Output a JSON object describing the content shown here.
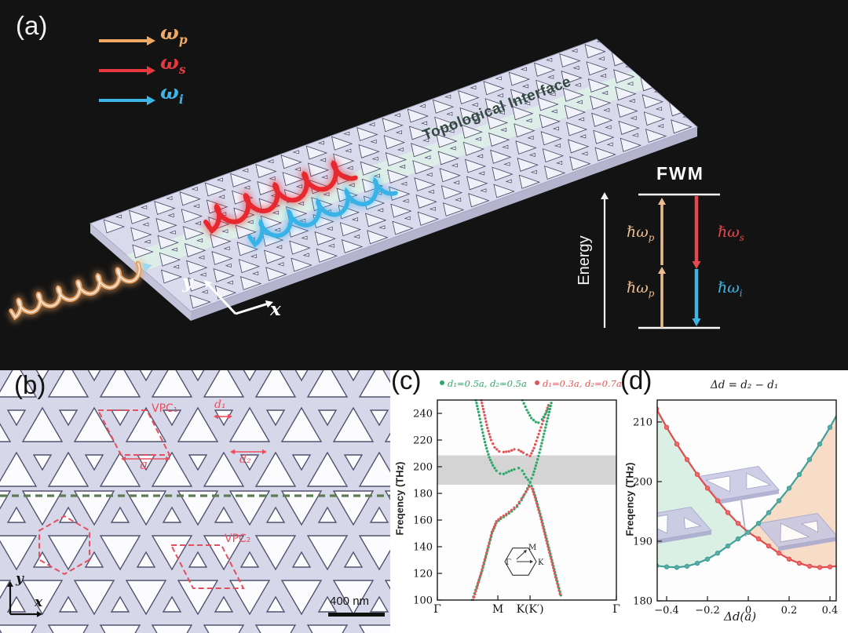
{
  "panel_a": {
    "label": "(a)",
    "legend": [
      {
        "name": "pump",
        "base": "ω",
        "sub": "p",
        "color": "#f0a865"
      },
      {
        "name": "signal",
        "base": "ω",
        "sub": "s",
        "color": "#e6383e"
      },
      {
        "name": "idler",
        "base": "ω",
        "sub": "i",
        "color": "#3fb5e5"
      }
    ],
    "interface_label": "Topological Interface",
    "axis_x": "x",
    "axis_y": "y",
    "fwm": {
      "title": "FWM",
      "energy_label": "Energy",
      "arrows": [
        {
          "name": "pump-upper",
          "base": "ℏω",
          "sub": "p",
          "color": "#ecbd92",
          "direction": "up"
        },
        {
          "name": "pump-lower",
          "base": "ℏω",
          "sub": "p",
          "color": "#ecbd92",
          "direction": "up"
        },
        {
          "name": "signal",
          "base": "ℏω",
          "sub": "s",
          "color": "#e6484e",
          "direction": "down"
        },
        {
          "name": "idler",
          "base": "ℏω",
          "sub": "i",
          "color": "#3fb5e5",
          "direction": "down"
        }
      ]
    },
    "colors": {
      "background": "#131313",
      "slab": "#dadaed",
      "holes": "#f1f1fa",
      "hole_outline": "#41415e",
      "interface_stripe": "#dcf3e6",
      "pump_wave": "#eba15f",
      "signal_wave": "#e8282f",
      "idler_wave": "#38b3e8"
    }
  },
  "panel_b": {
    "label": "(b)",
    "vpc1": "VPC₁",
    "vpc2": "VPC₂",
    "a_label": "a",
    "d1_label": "d₁",
    "d2_label": "d₂",
    "axis_x": "x",
    "axis_y": "y",
    "scalebar": "400 nm",
    "colors": {
      "background": "#d7d7ea",
      "hole": "#fcfcff",
      "outline": "#52526e",
      "annotation": "#e84f5e",
      "interface_line": "#5e7b54"
    }
  },
  "panel_c": {
    "label": "(c)"
  },
  "panel_d": {
    "label": "(d)"
  },
  "chart_data": [
    {
      "id": "band-structure",
      "type": "scatter",
      "ylabel": "Freqency (THz)",
      "ylim": [
        100,
        250
      ],
      "yticks": [
        100,
        120,
        140,
        160,
        180,
        200,
        220,
        240
      ],
      "xticks": [
        {
          "label": "Γ",
          "pos": 0
        },
        {
          "label": "M",
          "pos": 0.338
        },
        {
          "label": "K(K′)",
          "pos": 0.518
        },
        {
          "label": "Γ",
          "pos": 1
        }
      ],
      "bandgap_shade_THz": [
        186.5,
        208.5
      ],
      "legend": [
        {
          "label": "d₁=0.5a, d₂=0.5a",
          "color": "#2ea76a"
        },
        {
          "label": "d₁=0.3a, d₂=0.7a",
          "color": "#e05558"
        }
      ],
      "series": [
        {
          "name": "green-lower-band",
          "color": "#2ea76a",
          "points": [
            [
              0.195,
              100
            ],
            [
              0.22,
              110
            ],
            [
              0.25,
              122
            ],
            [
              0.28,
              137
            ],
            [
              0.305,
              150
            ],
            [
              0.33,
              158
            ],
            [
              0.355,
              161
            ],
            [
              0.385,
              163.5
            ],
            [
              0.415,
              166.5
            ],
            [
              0.445,
              170
            ],
            [
              0.47,
              175
            ],
            [
              0.495,
              181.5
            ],
            [
              0.518,
              188
            ],
            [
              0.535,
              183
            ],
            [
              0.555,
              174
            ],
            [
              0.58,
              162
            ],
            [
              0.61,
              146
            ],
            [
              0.64,
              130
            ],
            [
              0.67,
              114
            ],
            [
              0.695,
              101
            ]
          ]
        },
        {
          "name": "red-lower-band",
          "color": "#e05558",
          "points": [
            [
              0.2,
              100
            ],
            [
              0.225,
              111
            ],
            [
              0.25,
              123
            ],
            [
              0.28,
              138
            ],
            [
              0.305,
              151
            ],
            [
              0.33,
              159
            ],
            [
              0.355,
              162
            ],
            [
              0.385,
              164.5
            ],
            [
              0.415,
              167.5
            ],
            [
              0.445,
              171
            ],
            [
              0.47,
              176
            ],
            [
              0.495,
              181
            ],
            [
              0.513,
              185
            ],
            [
              0.53,
              183.5
            ],
            [
              0.55,
              175
            ],
            [
              0.575,
              163
            ],
            [
              0.605,
              147
            ],
            [
              0.635,
              131
            ],
            [
              0.665,
              115
            ],
            [
              0.69,
              102
            ]
          ]
        },
        {
          "name": "green-upper-band",
          "color": "#2ea76a",
          "points": [
            [
              0.215,
              250
            ],
            [
              0.23,
              241
            ],
            [
              0.25,
              228
            ],
            [
              0.27,
              216
            ],
            [
              0.29,
              207
            ],
            [
              0.31,
              201
            ],
            [
              0.33,
              197
            ],
            [
              0.35,
              194.8
            ],
            [
              0.37,
              194.6
            ],
            [
              0.4,
              196.5
            ],
            [
              0.43,
              198
            ],
            [
              0.455,
              199
            ],
            [
              0.475,
              197
            ],
            [
              0.495,
              192
            ],
            [
              0.518,
              188.5
            ],
            [
              0.535,
              194
            ],
            [
              0.555,
              203
            ],
            [
              0.575,
              213
            ],
            [
              0.6,
              227
            ],
            [
              0.625,
              241
            ],
            [
              0.64,
              250
            ]
          ]
        },
        {
          "name": "red-upper-band",
          "color": "#e05558",
          "points": [
            [
              0.245,
              250
            ],
            [
              0.26,
              241
            ],
            [
              0.28,
              229
            ],
            [
              0.3,
              220
            ],
            [
              0.32,
              214.5
            ],
            [
              0.345,
              211.5
            ],
            [
              0.37,
              211
            ],
            [
              0.4,
              211.5
            ],
            [
              0.43,
              213
            ],
            [
              0.455,
              212.5
            ],
            [
              0.48,
              210.5
            ],
            [
              0.5,
              209
            ],
            [
              0.518,
              208
            ],
            [
              0.54,
              214
            ],
            [
              0.56,
              222
            ],
            [
              0.585,
              232
            ],
            [
              0.61,
              242
            ],
            [
              0.625,
              248
            ]
          ]
        },
        {
          "name": "green-second-upper-band",
          "color": "#2ea76a",
          "points": [
            [
              0.475,
              250
            ],
            [
              0.5,
              242.5
            ],
            [
              0.525,
              236.5
            ],
            [
              0.55,
              233.5
            ],
            [
              0.565,
              233
            ],
            [
              0.585,
              235.5
            ],
            [
              0.61,
              241
            ],
            [
              0.635,
              248
            ]
          ]
        }
      ],
      "inset": {
        "name": "brillouin-zone",
        "labels": [
          "Γ",
          "M",
          "K"
        ]
      }
    },
    {
      "id": "bandgap-vs-dd",
      "type": "line",
      "title": "Δd = d₂ − d₁",
      "xlabel": "Δd(a)",
      "ylabel": "Freqency (THz)",
      "xlim": [
        -0.47,
        0.47
      ],
      "ylim": [
        180,
        214.7
      ],
      "xticks": [
        -0.4,
        -0.2,
        0,
        0.2,
        0.4
      ],
      "xtick_labels": [
        "−0.4",
        "−0.2",
        "0",
        "0.2",
        "0.4"
      ],
      "yticks": [
        180,
        190,
        200,
        210
      ],
      "x": [
        -0.45,
        -0.4,
        -0.35,
        -0.3,
        -0.25,
        -0.2,
        -0.15,
        -0.1,
        -0.05,
        0,
        0.05,
        0.1,
        0.15,
        0.2,
        0.25,
        0.3,
        0.35,
        0.4,
        0.45
      ],
      "series": [
        {
          "name": "red-band-edge",
          "color": "#e34b4b",
          "marker_fill": "#ea6b6b",
          "values": [
            212.2,
            209.1,
            206.3,
            203.7,
            201.2,
            198.9,
            196.8,
            194.8,
            193.0,
            191.5,
            190.4,
            189.2,
            188.0,
            187.0,
            186.3,
            185.8,
            185.6,
            185.7,
            185.9
          ]
        },
        {
          "name": "teal-band-edge",
          "color": "#419f99",
          "marker_fill": "#5aaba4",
          "values": [
            185.9,
            185.7,
            185.6,
            185.8,
            186.3,
            187.0,
            188.0,
            189.2,
            190.4,
            191.5,
            193.0,
            194.8,
            196.8,
            198.9,
            201.2,
            203.7,
            206.3,
            209.1,
            212.2
          ]
        }
      ],
      "region_fills": [
        {
          "name": "negative-dd-region",
          "color": "#d7eee2"
        },
        {
          "name": "positive-dd-region",
          "color": "#f6d9c1"
        }
      ]
    }
  ]
}
